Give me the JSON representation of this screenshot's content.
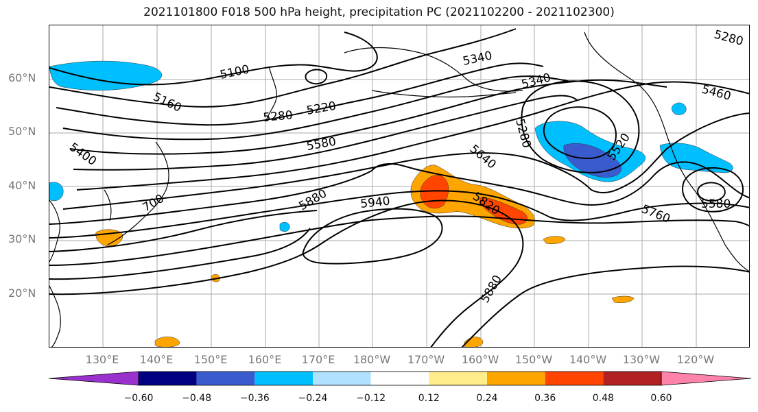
{
  "title": "2021101800 F018 500 hPa height, precipitation PC (2021102200 - 2021102300)",
  "lat_labels": [
    "60°N",
    "50°N",
    "40°N",
    "30°N",
    "20°N"
  ],
  "lon_labels": [
    "130°E",
    "140°E",
    "150°E",
    "160°E",
    "170°E",
    "180°W",
    "170°W",
    "160°W",
    "150°W",
    "140°W",
    "130°W",
    "120°W"
  ],
  "contour_labels": [
    "5100",
    "5160",
    "5220",
    "5280",
    "5340",
    "5340",
    "5460",
    "5280",
    "5520",
    "5580",
    "5400",
    "5640",
    "5820",
    "5880",
    "5940",
    "5760",
    "5580",
    "5280",
    "5880",
    "700"
  ],
  "colorbar": {
    "colors": [
      "#9932cc",
      "#000080",
      "#3a5bcd",
      "#00bfff",
      "#b0e2ff",
      "#ffffff",
      "#ffec8b",
      "#ffa500",
      "#ff4500",
      "#b22222",
      "#ff82ab"
    ],
    "tick_labels": [
      "−0.60",
      "−0.48",
      "−0.36",
      "−0.24",
      "−0.12",
      "0.12",
      "0.24",
      "0.36",
      "0.48",
      "0.60"
    ]
  }
}
